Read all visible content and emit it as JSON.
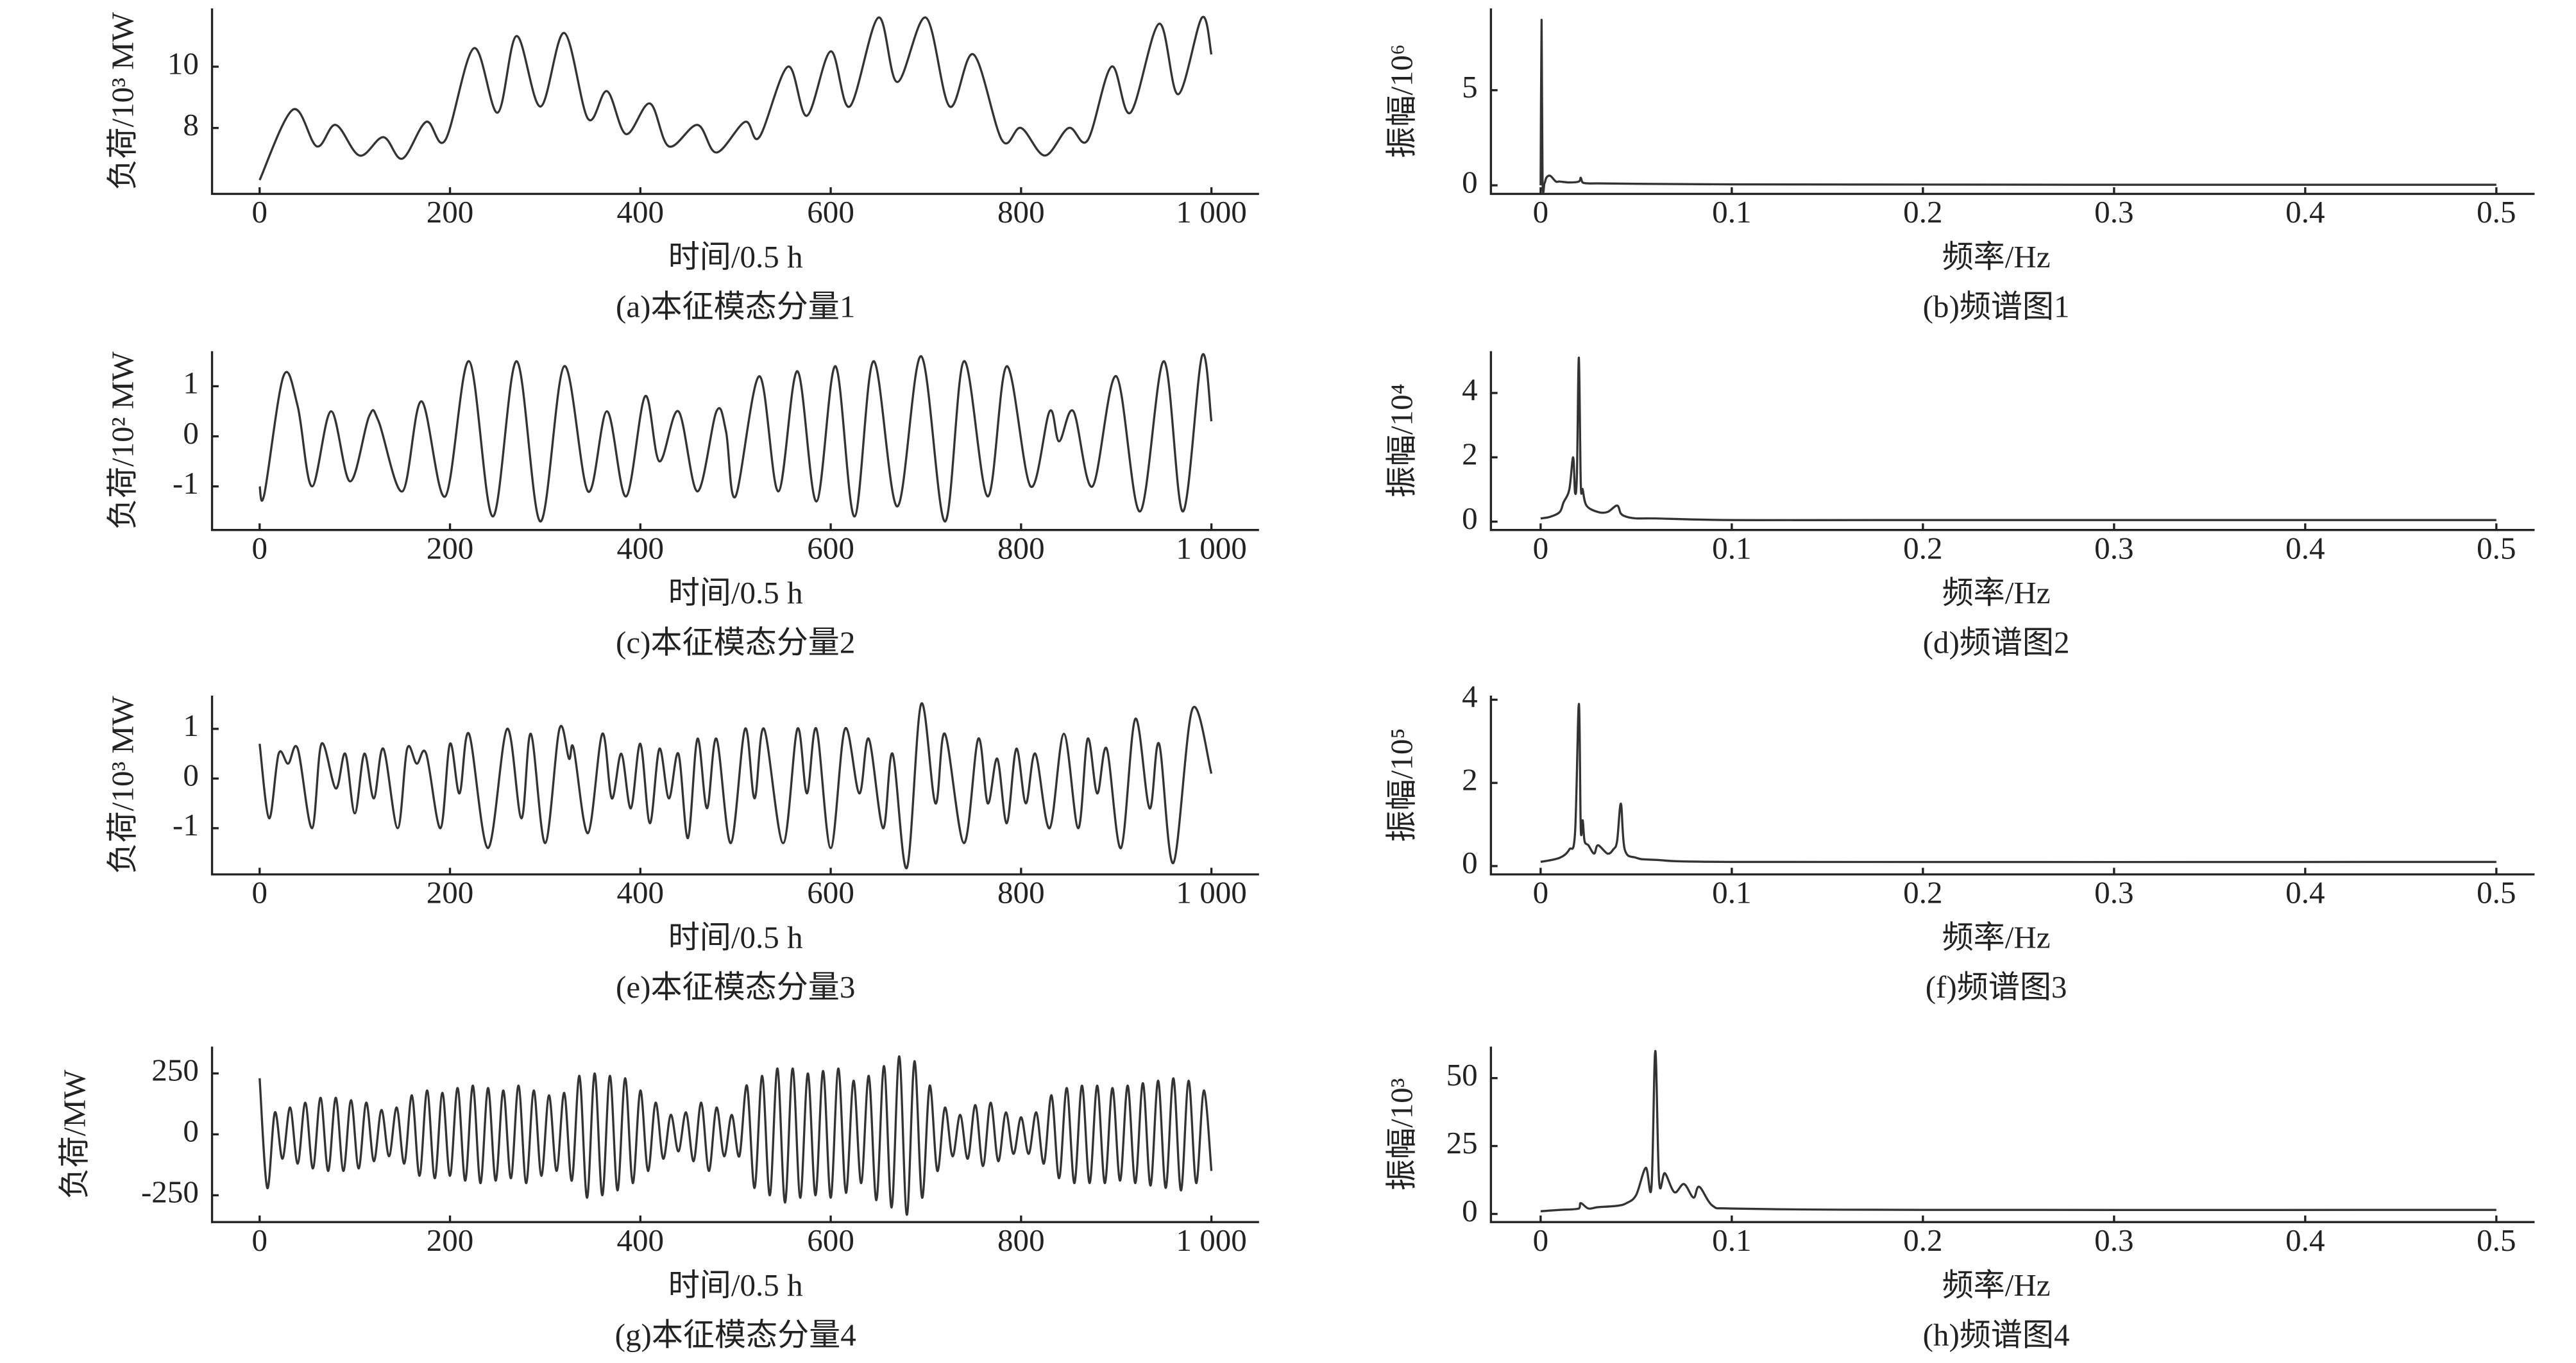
{
  "chart_data": [
    {
      "type": "line",
      "caption": "(a)本征模态分量1",
      "xlabel": "时间/0.5 h",
      "ylabel": "负荷/10³ MW",
      "color": "#333333",
      "x": [
        0,
        35,
        60,
        80,
        105,
        130,
        150,
        175,
        195,
        225,
        250,
        270,
        295,
        320,
        345,
        365,
        385,
        410,
        430,
        460,
        480,
        510,
        525,
        555,
        575,
        600,
        620,
        650,
        670,
        700,
        725,
        750,
        780,
        800,
        825,
        850,
        870,
        895,
        915,
        945,
        965,
        990,
        1000
      ],
      "values": [
        6.3,
        8.6,
        7.4,
        8.1,
        7.1,
        7.7,
        7.0,
        8.2,
        7.6,
        10.6,
        8.5,
        11.0,
        8.7,
        11.1,
        8.3,
        9.2,
        7.8,
        8.8,
        7.4,
        8.1,
        7.2,
        8.2,
        7.7,
        10.0,
        8.4,
        10.5,
        8.7,
        11.6,
        9.5,
        11.6,
        8.7,
        10.4,
        7.6,
        8.0,
        7.1,
        8.0,
        7.6,
        10.0,
        8.5,
        11.4,
        9.1,
        11.6,
        10.4
      ],
      "xlim": [
        -50,
        1050
      ],
      "ylim": [
        5.85,
        11.9
      ],
      "xticks": [
        0,
        200,
        400,
        600,
        800,
        {
          "value": 1000,
          "label": "1 000"
        }
      ],
      "yticks": [
        8,
        10
      ]
    },
    {
      "type": "line",
      "caption": "(b)频谱图1",
      "xlabel": "频率/Hz",
      "ylabel": "振幅/10⁶",
      "color": "#333333",
      "x": [
        0,
        0.0005,
        0.001,
        0.002,
        0.003,
        0.005,
        0.008,
        0.01,
        0.015,
        0.02,
        0.021,
        0.022,
        0.025,
        0.03,
        0.05,
        0.1,
        0.2,
        0.3,
        0.4,
        0.5
      ],
      "values": [
        0,
        8.7,
        0.3,
        0.1,
        0.4,
        0.5,
        0.2,
        0.2,
        0.15,
        0.2,
        0.4,
        0.15,
        0.1,
        0.1,
        0.08,
        0.05,
        0.04,
        0.03,
        0.03,
        0.03
      ],
      "xlim": [
        -0.026,
        0.52
      ],
      "ylim": [
        -0.45,
        9.3
      ],
      "xticks": [
        0,
        0.1,
        0.2,
        0.3,
        0.4,
        0.5
      ],
      "yticks": [
        0,
        5
      ]
    },
    {
      "type": "line",
      "caption": "(c)本征模态分量2",
      "xlabel": "时间/0.5 h",
      "ylabel": "负荷/10² MW",
      "color": "#333333",
      "x": [
        0,
        5,
        25,
        40,
        55,
        75,
        95,
        115,
        125,
        150,
        170,
        195,
        220,
        245,
        270,
        295,
        320,
        345,
        365,
        385,
        405,
        420,
        440,
        460,
        480,
        490,
        500,
        525,
        545,
        565,
        585,
        605,
        625,
        645,
        670,
        695,
        720,
        740,
        765,
        785,
        810,
        830,
        840,
        855,
        875,
        900,
        925,
        950,
        970,
        990,
        1000
      ],
      "values": [
        -1.0,
        -1.15,
        1.2,
        0.6,
        -1.0,
        0.5,
        -0.9,
        0.4,
        0.3,
        -1.1,
        0.7,
        -1.2,
        1.5,
        -1.6,
        1.5,
        -1.7,
        1.4,
        -1.1,
        0.5,
        -1.2,
        0.8,
        -0.5,
        0.5,
        -1.1,
        0.5,
        0.1,
        -1.2,
        1.2,
        -1.1,
        1.3,
        -1.3,
        1.4,
        -1.6,
        1.5,
        -1.4,
        1.6,
        -1.7,
        1.5,
        -1.2,
        1.4,
        -1.0,
        0.5,
        -0.1,
        0.5,
        -1.0,
        1.2,
        -1.5,
        1.5,
        -1.5,
        1.6,
        0.3
      ],
      "xlim": [
        -50,
        1050
      ],
      "ylim": [
        -1.87,
        1.7
      ],
      "xticks": [
        0,
        200,
        400,
        600,
        800,
        {
          "value": 1000,
          "label": "1 000"
        }
      ],
      "yticks": [
        -1,
        0,
        1
      ]
    },
    {
      "type": "line",
      "caption": "(d)频谱图2",
      "xlabel": "频率/Hz",
      "ylabel": "振幅/10⁴",
      "color": "#333333",
      "x": [
        0,
        0.005,
        0.01,
        0.012,
        0.015,
        0.017,
        0.018,
        0.019,
        0.02,
        0.021,
        0.022,
        0.024,
        0.03,
        0.035,
        0.04,
        0.042,
        0.045,
        0.05,
        0.06,
        0.1,
        0.2,
        0.5
      ],
      "values": [
        0.1,
        0.15,
        0.3,
        0.6,
        1.0,
        2.0,
        0.9,
        1.5,
        5.1,
        1.2,
        1.0,
        0.5,
        0.3,
        0.3,
        0.5,
        0.25,
        0.15,
        0.1,
        0.1,
        0.05,
        0.05,
        0.05
      ],
      "xlim": [
        -0.026,
        0.52
      ],
      "ylim": [
        -0.26,
        5.3
      ],
      "xticks": [
        0,
        0.1,
        0.2,
        0.3,
        0.4,
        0.5
      ],
      "yticks": [
        0,
        2,
        4
      ]
    },
    {
      "type": "line",
      "caption": "(e)本征模态分量3",
      "xlabel": "时间/0.5 h",
      "ylabel": "负荷/10³ MW",
      "color": "#333333",
      "x": [
        0,
        10,
        20,
        30,
        40,
        55,
        65,
        80,
        90,
        100,
        110,
        120,
        130,
        145,
        155,
        165,
        175,
        190,
        200,
        210,
        220,
        240,
        260,
        275,
        285,
        300,
        315,
        325,
        330,
        345,
        360,
        370,
        380,
        390,
        400,
        410,
        420,
        430,
        440,
        450,
        460,
        470,
        480,
        495,
        510,
        520,
        530,
        550,
        565,
        575,
        585,
        600,
        615,
        630,
        640,
        655,
        665,
        680,
        695,
        710,
        720,
        740,
        755,
        765,
        775,
        785,
        795,
        805,
        815,
        830,
        845,
        860,
        870,
        880,
        890,
        905,
        920,
        935,
        945,
        960,
        980,
        1000
      ],
      "values": [
        0.7,
        -0.8,
        0.5,
        0.3,
        0.6,
        -1.0,
        0.7,
        -0.2,
        0.5,
        -0.7,
        0.5,
        -0.4,
        0.6,
        -1.0,
        0.6,
        0.3,
        0.5,
        -1.0,
        0.7,
        -0.3,
        0.9,
        -1.4,
        1.0,
        -0.8,
        0.9,
        -1.3,
        1.0,
        0.4,
        0.6,
        -1.1,
        0.9,
        -0.4,
        0.5,
        -0.6,
        0.7,
        -0.9,
        0.6,
        -0.4,
        0.5,
        -1.2,
        0.8,
        -0.6,
        0.8,
        -1.3,
        1.0,
        -0.4,
        1.0,
        -1.3,
        1.0,
        -0.3,
        1.0,
        -1.4,
        1.0,
        -0.3,
        0.8,
        -1.0,
        0.5,
        -1.8,
        1.5,
        -0.5,
        0.9,
        -1.3,
        0.8,
        -0.5,
        0.4,
        -0.9,
        0.6,
        -0.5,
        0.5,
        -1.0,
        0.9,
        -1.0,
        0.8,
        -0.3,
        0.6,
        -1.4,
        1.2,
        -0.6,
        0.7,
        -1.7,
        1.4,
        0.1
      ],
      "xlim": [
        -50,
        1050
      ],
      "ylim": [
        -1.93,
        1.67
      ],
      "xticks": [
        0,
        200,
        400,
        600,
        800,
        {
          "value": 1000,
          "label": "1 000"
        }
      ],
      "yticks": [
        -1,
        0,
        1
      ]
    },
    {
      "type": "line",
      "caption": "(f)频谱图3",
      "xlabel": "频率/Hz",
      "ylabel": "振幅/10⁵",
      "color": "#333333",
      "x": [
        0,
        0.01,
        0.015,
        0.018,
        0.02,
        0.021,
        0.022,
        0.023,
        0.025,
        0.028,
        0.03,
        0.035,
        0.038,
        0.04,
        0.042,
        0.044,
        0.05,
        0.06,
        0.1,
        0.5
      ],
      "values": [
        0.1,
        0.2,
        0.4,
        0.8,
        3.9,
        0.9,
        1.1,
        0.6,
        0.5,
        0.3,
        0.5,
        0.3,
        0.4,
        0.6,
        1.5,
        0.4,
        0.2,
        0.15,
        0.1,
        0.1
      ],
      "xlim": [
        -0.026,
        0.52
      ],
      "ylim": [
        -0.2,
        4.1
      ],
      "xticks": [
        0,
        0.1,
        0.2,
        0.3,
        0.4,
        0.5
      ],
      "yticks": [
        0,
        2,
        4
      ]
    },
    {
      "type": "line",
      "caption": "(g)本征模态分量4",
      "xlabel": "时间/0.5 h",
      "ylabel": "负荷/MW",
      "color": "#333333",
      "x": [
        0,
        8,
        16,
        24,
        32,
        40,
        48,
        56,
        64,
        72,
        80,
        88,
        96,
        104,
        112,
        120,
        128,
        136,
        144,
        152,
        160,
        168,
        176,
        184,
        192,
        200,
        208,
        216,
        224,
        232,
        240,
        248,
        256,
        264,
        272,
        280,
        288,
        296,
        304,
        312,
        320,
        328,
        336,
        344,
        352,
        360,
        368,
        376,
        384,
        392,
        400,
        408,
        416,
        424,
        432,
        440,
        448,
        456,
        464,
        472,
        480,
        488,
        496,
        504,
        512,
        520,
        528,
        536,
        544,
        552,
        560,
        568,
        576,
        584,
        592,
        600,
        608,
        616,
        624,
        632,
        640,
        648,
        656,
        664,
        672,
        680,
        688,
        696,
        704,
        712,
        720,
        728,
        736,
        744,
        752,
        760,
        768,
        776,
        784,
        792,
        800,
        808,
        816,
        824,
        832,
        840,
        848,
        856,
        864,
        872,
        880,
        888,
        896,
        904,
        912,
        920,
        928,
        936,
        944,
        952,
        960,
        968,
        976,
        984,
        992,
        1000
      ],
      "values": [
        230,
        -220,
        90,
        -100,
        110,
        -120,
        130,
        -140,
        150,
        -150,
        150,
        -150,
        140,
        -140,
        130,
        -110,
        100,
        -90,
        110,
        -120,
        160,
        -170,
        180,
        -180,
        170,
        -170,
        190,
        -190,
        200,
        -200,
        190,
        -190,
        180,
        -180,
        200,
        -200,
        180,
        -170,
        160,
        -150,
        170,
        -190,
        240,
        -260,
        250,
        -250,
        240,
        -230,
        230,
        -200,
        180,
        -150,
        130,
        -100,
        80,
        -70,
        90,
        -110,
        130,
        -150,
        110,
        -90,
        80,
        -90,
        200,
        -220,
        240,
        -250,
        270,
        -280,
        270,
        -260,
        250,
        -250,
        260,
        -260,
        270,
        -240,
        220,
        -200,
        240,
        -270,
        280,
        -300,
        320,
        -330,
        300,
        -260,
        200,
        -150,
        110,
        -90,
        80,
        -100,
        120,
        -130,
        130,
        -110,
        90,
        -80,
        70,
        -80,
        90,
        -120,
        160,
        -180,
        190,
        -200,
        200,
        -200,
        200,
        -200,
        190,
        -190,
        200,
        -200,
        210,
        -210,
        220,
        -220,
        230,
        -230,
        220,
        -200,
        180,
        -150
      ],
      "xlim": [
        -50,
        1050
      ],
      "ylim": [
        -360,
        360
      ],
      "xticks": [
        0,
        200,
        400,
        600,
        800,
        {
          "value": 1000,
          "label": "1 000"
        }
      ],
      "yticks": [
        -250,
        0,
        250
      ]
    },
    {
      "type": "line",
      "caption": "(h)频谱图4",
      "xlabel": "频率/Hz",
      "ylabel": "振幅/10³",
      "color": "#333333",
      "x": [
        0,
        0.01,
        0.02,
        0.021,
        0.025,
        0.03,
        0.04,
        0.045,
        0.05,
        0.055,
        0.058,
        0.06,
        0.062,
        0.065,
        0.07,
        0.075,
        0.08,
        0.083,
        0.09,
        0.1,
        0.2,
        0.5
      ],
      "values": [
        1,
        1.5,
        2,
        4,
        2,
        2.5,
        3,
        4,
        7,
        17,
        10,
        60,
        12,
        15,
        8,
        11,
        6,
        10,
        3,
        2,
        1.5,
        1.5
      ],
      "xlim": [
        -0.026,
        0.52
      ],
      "ylim": [
        -3,
        61.6
      ],
      "xticks": [
        0,
        0.1,
        0.2,
        0.3,
        0.4,
        0.5
      ],
      "yticks": [
        0,
        25,
        50
      ]
    }
  ]
}
